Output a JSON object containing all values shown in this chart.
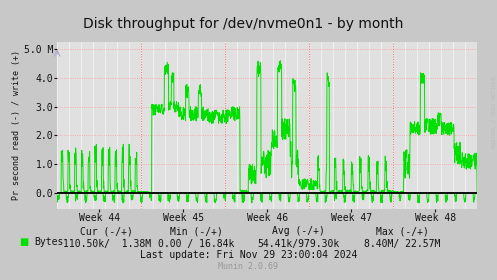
{
  "title": "Disk throughput for /dev/nvme0n1 - by month",
  "ylabel": "Pr second read (-) / write (+)",
  "background_color": "#c8c8c8",
  "plot_bg_color": "#e0e0e0",
  "line_color": "#00e000",
  "zero_line_color": "#000000",
  "x_weeks": [
    "Week 44",
    "Week 45",
    "Week 46",
    "Week 47",
    "Week 48"
  ],
  "ylim": [
    -0.55,
    5.25
  ],
  "yticks": [
    0.0,
    1.0,
    2.0,
    3.0,
    4.0,
    5.0
  ],
  "ytick_labels": [
    "0.0",
    "1.0",
    "2.0",
    "3.0",
    "4.0",
    "5.0 M"
  ],
  "legend_label": "Bytes",
  "cur_text": "Cur (-/+)",
  "cur_val": "110.50k/  1.38M",
  "min_text": "Min (-/+)",
  "min_val": "0.00 / 16.84k",
  "avg_text": "Avg (-/+)",
  "avg_val": "54.41k/979.30k",
  "max_text": "Max (-/+)",
  "max_val": "8.40M/ 22.57M",
  "last_update": "Last update: Fri Nov 29 23:00:04 2024",
  "munin_version": "Munin 2.0.69",
  "rrdtool_text": "RRDTOOL / TOBI OETIKER",
  "title_fontsize": 10,
  "axis_fontsize": 7,
  "legend_fontsize": 7
}
